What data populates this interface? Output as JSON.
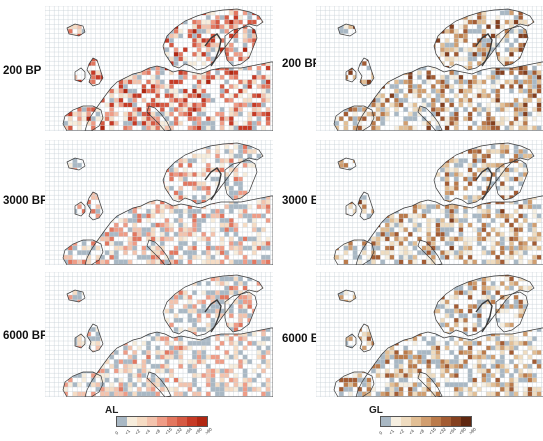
{
  "rows": [
    {
      "label": "200 BP",
      "al_intensity": 0.85,
      "gl_intensity": 0.75
    },
    {
      "label": "3000 BP",
      "al_intensity": 0.35,
      "gl_intensity": 0.6
    },
    {
      "label": "6000 BP",
      "al_intensity": 0.2,
      "gl_intensity": 0.5
    }
  ],
  "legends": {
    "al": {
      "title": "AL",
      "colors": [
        "#a9b8c4",
        "#f7eddc",
        "#f6dcc4",
        "#f3c3ad",
        "#ef9c86",
        "#e3775f",
        "#d65a43",
        "#c63a25",
        "#b12712"
      ],
      "ticks": [
        "0",
        "<1",
        "<2",
        "<4",
        "<8",
        "<16",
        "<32",
        "<64",
        "<90",
        ">90"
      ]
    },
    "gl": {
      "title": "GL",
      "colors": [
        "#a9b8c4",
        "#f6efe1",
        "#efdcc0",
        "#e2bf95",
        "#d19e6f",
        "#bb7b4b",
        "#a35c33",
        "#84401f",
        "#5f2710"
      ],
      "ticks": [
        "0",
        "<1",
        "<2",
        "<4",
        "<8",
        "<16",
        "<32",
        "<64",
        "<90",
        ">90"
      ]
    }
  },
  "colors": {
    "grid": "#c5ced6",
    "coast": "#3a3a3a",
    "no_data": "#a9b8c4"
  }
}
